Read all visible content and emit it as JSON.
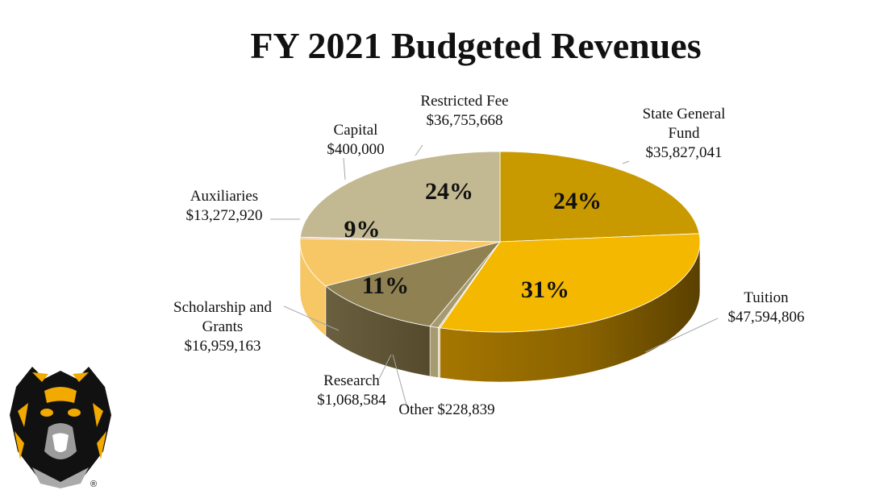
{
  "chart_data": {
    "type": "pie",
    "title": "FY 2021 Budgeted Revenues",
    "slices": [
      {
        "key": "state",
        "label_lines": [
          "State General",
          "Fund",
          "$35,827,041"
        ],
        "value": 35827041,
        "percent_label": "24%",
        "color": "#C99A00"
      },
      {
        "key": "tuition",
        "label_lines": [
          "Tuition",
          "$47,594,806"
        ],
        "value": 47594806,
        "percent_label": "31%",
        "color": "#F5B800"
      },
      {
        "key": "other",
        "label_lines": [
          "Other $228,839"
        ],
        "value": 228839,
        "percent_label": "",
        "color": "#D6C9A6"
      },
      {
        "key": "research",
        "label_lines": [
          "Research",
          "$1,068,584"
        ],
        "value": 1068584,
        "percent_label": "",
        "color": "#A69A70"
      },
      {
        "key": "scholarship",
        "label_lines": [
          "Scholarship and",
          "Grants",
          "$16,959,163"
        ],
        "value": 16959163,
        "percent_label": "11%",
        "color": "#8F8152"
      },
      {
        "key": "auxiliaries",
        "label_lines": [
          "Auxiliaries",
          "$13,272,920"
        ],
        "value": 13272920,
        "percent_label": "9%",
        "color": "#F7C766"
      },
      {
        "key": "capital",
        "label_lines": [
          "Capital",
          "$400,000"
        ],
        "value": 400000,
        "percent_label": "",
        "color": "#E9B9A8"
      },
      {
        "key": "restricted",
        "label_lines": [
          "Restricted Fee",
          "$36,755,668"
        ],
        "value": 36755668,
        "percent_label": "24%",
        "color": "#C2B891"
      }
    ]
  },
  "logo": {
    "name": "tiger-mascot-logo",
    "trademark": "®"
  }
}
